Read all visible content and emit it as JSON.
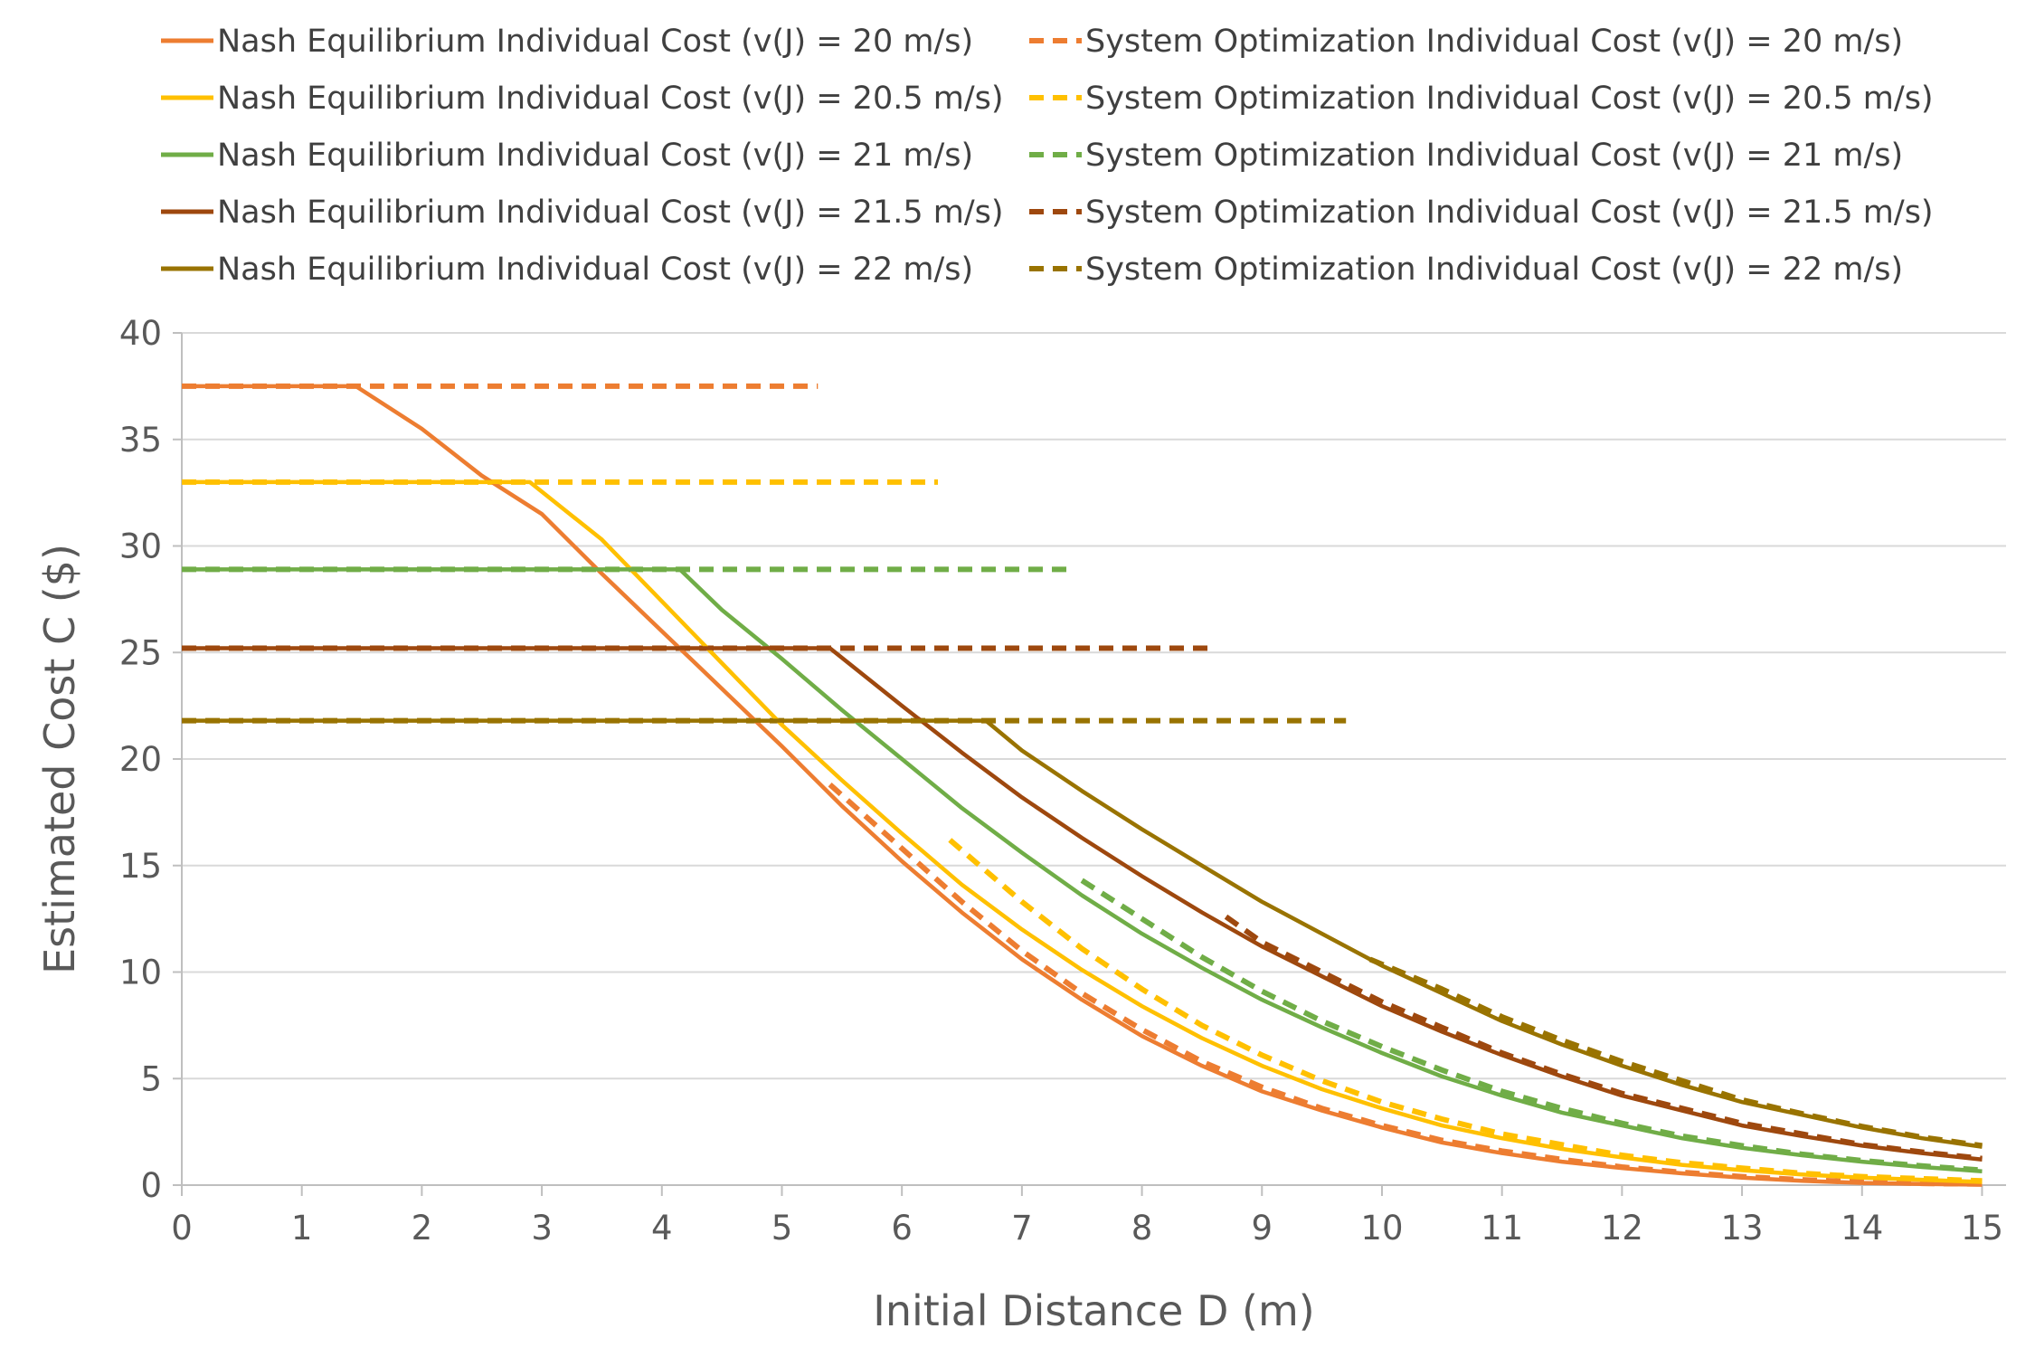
{
  "chart_data": {
    "type": "line",
    "title": "",
    "xlabel": "Initial Distance D (m)",
    "ylabel": "Estimated Cost C ($)",
    "xlim": [
      0,
      15.2
    ],
    "ylim": [
      0,
      40
    ],
    "x_ticks": [
      "0",
      "1",
      "2",
      "3",
      "4",
      "5",
      "6",
      "7",
      "8",
      "9",
      "10",
      "11",
      "12",
      "13",
      "14",
      "15"
    ],
    "y_ticks": [
      "0",
      "5",
      "10",
      "15",
      "20",
      "25",
      "30",
      "35",
      "40"
    ],
    "grid": "horizontal",
    "legend_position": "top",
    "series": [
      {
        "name": "Nash Equilibrium Individual Cost (v(J) = 20 m/s)",
        "color": "#ED7D31",
        "dash": "solid",
        "points": [
          [
            0,
            37.5
          ],
          [
            1.45,
            37.5
          ],
          [
            2,
            35.5
          ],
          [
            2.5,
            33.3
          ],
          [
            3,
            31.5
          ],
          [
            3.5,
            28.7
          ],
          [
            4,
            26
          ],
          [
            4.5,
            23.3
          ],
          [
            5,
            20.6
          ],
          [
            5.5,
            17.8
          ],
          [
            6,
            15.2
          ],
          [
            6.5,
            12.8
          ],
          [
            7,
            10.6
          ],
          [
            7.5,
            8.7
          ],
          [
            8,
            7
          ],
          [
            8.5,
            5.6
          ],
          [
            9,
            4.4
          ],
          [
            9.5,
            3.5
          ],
          [
            10,
            2.7
          ],
          [
            10.5,
            2
          ],
          [
            11,
            1.5
          ],
          [
            11.5,
            1.1
          ],
          [
            12,
            0.8
          ],
          [
            12.5,
            0.55
          ],
          [
            13,
            0.35
          ],
          [
            13.5,
            0.2
          ],
          [
            14,
            0.1
          ],
          [
            14.5,
            0.05
          ],
          [
            15,
            0.02
          ]
        ]
      },
      {
        "name": "System Optimization Individual Cost (v(J) = 20 m/s)",
        "color": "#ED7D31",
        "dash": "dashed",
        "points": [
          [
            0,
            37.5
          ],
          [
            5.3,
            37.5
          ]
        ],
        "points_lower": [
          [
            5.4,
            18.8
          ],
          [
            6,
            15.8
          ],
          [
            6.5,
            13.3
          ],
          [
            7,
            11
          ],
          [
            7.5,
            9
          ],
          [
            8,
            7.3
          ],
          [
            8.5,
            5.8
          ],
          [
            9,
            4.6
          ],
          [
            9.5,
            3.6
          ],
          [
            10,
            2.8
          ],
          [
            10.5,
            2.1
          ],
          [
            11,
            1.6
          ],
          [
            11.5,
            1.2
          ],
          [
            12,
            0.85
          ],
          [
            12.5,
            0.6
          ],
          [
            13,
            0.4
          ],
          [
            13.5,
            0.25
          ],
          [
            14,
            0.15
          ],
          [
            14.5,
            0.08
          ],
          [
            15,
            0.05
          ]
        ]
      },
      {
        "name": "Nash Equilibrium Individual Cost (v(J) = 20.5 m/s)",
        "color": "#FFC000",
        "dash": "solid",
        "points": [
          [
            0,
            33
          ],
          [
            2.9,
            33
          ],
          [
            3.5,
            30.3
          ],
          [
            4,
            27.4
          ],
          [
            4.5,
            24.5
          ],
          [
            5,
            21.6
          ],
          [
            5.5,
            19
          ],
          [
            6,
            16.5
          ],
          [
            6.5,
            14.1
          ],
          [
            7,
            12
          ],
          [
            7.5,
            10.1
          ],
          [
            8,
            8.4
          ],
          [
            8.5,
            6.9
          ],
          [
            9,
            5.6
          ],
          [
            9.5,
            4.5
          ],
          [
            10,
            3.6
          ],
          [
            10.5,
            2.8
          ],
          [
            11,
            2.2
          ],
          [
            11.5,
            1.7
          ],
          [
            12,
            1.3
          ],
          [
            12.5,
            0.95
          ],
          [
            13,
            0.7
          ],
          [
            13.5,
            0.5
          ],
          [
            14,
            0.35
          ],
          [
            14.5,
            0.25
          ],
          [
            15,
            0.15
          ]
        ]
      },
      {
        "name": "System Optimization Individual Cost (v(J) = 20.5 m/s)",
        "color": "#FFC000",
        "dash": "dashed",
        "points": [
          [
            0,
            33
          ],
          [
            6.3,
            33
          ]
        ],
        "points_lower": [
          [
            6.4,
            16.2
          ],
          [
            7,
            13.3
          ],
          [
            7.5,
            11.1
          ],
          [
            8,
            9.2
          ],
          [
            8.5,
            7.5
          ],
          [
            9,
            6.1
          ],
          [
            9.5,
            4.9
          ],
          [
            10,
            3.9
          ],
          [
            10.5,
            3.1
          ],
          [
            11,
            2.4
          ],
          [
            11.5,
            1.9
          ],
          [
            12,
            1.4
          ],
          [
            12.5,
            1.05
          ],
          [
            13,
            0.8
          ],
          [
            13.5,
            0.55
          ],
          [
            14,
            0.4
          ],
          [
            14.5,
            0.3
          ],
          [
            15,
            0.2
          ]
        ]
      },
      {
        "name": "Nash Equilibrium Individual Cost (v(J) = 21 m/s)",
        "color": "#70AD47",
        "dash": "solid",
        "points": [
          [
            0,
            28.9
          ],
          [
            4.15,
            28.9
          ],
          [
            4.5,
            27
          ],
          [
            5,
            24.7
          ],
          [
            5.5,
            22.3
          ],
          [
            6,
            20
          ],
          [
            6.5,
            17.7
          ],
          [
            7,
            15.6
          ],
          [
            7.5,
            13.6
          ],
          [
            8,
            11.8
          ],
          [
            8.5,
            10.2
          ],
          [
            9,
            8.7
          ],
          [
            9.5,
            7.4
          ],
          [
            10,
            6.2
          ],
          [
            10.5,
            5.1
          ],
          [
            11,
            4.2
          ],
          [
            11.5,
            3.4
          ],
          [
            12,
            2.8
          ],
          [
            12.5,
            2.2
          ],
          [
            13,
            1.75
          ],
          [
            13.5,
            1.4
          ],
          [
            14,
            1.1
          ],
          [
            14.5,
            0.85
          ],
          [
            15,
            0.65
          ]
        ]
      },
      {
        "name": "System Optimization Individual Cost (v(J) = 21 m/s)",
        "color": "#70AD47",
        "dash": "dashed",
        "points": [
          [
            0,
            28.9
          ],
          [
            7.4,
            28.9
          ]
        ],
        "points_lower": [
          [
            7.5,
            14.3
          ],
          [
            8,
            12.5
          ],
          [
            8.5,
            10.7
          ],
          [
            9,
            9.1
          ],
          [
            9.5,
            7.7
          ],
          [
            10,
            6.5
          ],
          [
            10.5,
            5.4
          ],
          [
            11,
            4.4
          ],
          [
            11.5,
            3.6
          ],
          [
            12,
            2.9
          ],
          [
            12.5,
            2.3
          ],
          [
            13,
            1.85
          ],
          [
            13.5,
            1.45
          ],
          [
            14,
            1.15
          ],
          [
            14.5,
            0.9
          ],
          [
            15,
            0.7
          ]
        ]
      },
      {
        "name": "Nash Equilibrium Individual Cost (v(J) = 21.5 m/s)",
        "color": "#9E480E",
        "dash": "solid",
        "points": [
          [
            0,
            25.2
          ],
          [
            5.4,
            25.2
          ],
          [
            6,
            22.5
          ],
          [
            6.5,
            20.3
          ],
          [
            7,
            18.2
          ],
          [
            7.5,
            16.3
          ],
          [
            8,
            14.5
          ],
          [
            8.5,
            12.8
          ],
          [
            9,
            11.2
          ],
          [
            9.5,
            9.8
          ],
          [
            10,
            8.4
          ],
          [
            10.5,
            7.2
          ],
          [
            11,
            6.1
          ],
          [
            11.5,
            5.1
          ],
          [
            12,
            4.2
          ],
          [
            12.5,
            3.5
          ],
          [
            13,
            2.8
          ],
          [
            13.5,
            2.3
          ],
          [
            14,
            1.85
          ],
          [
            14.5,
            1.5
          ],
          [
            15,
            1.2
          ]
        ]
      },
      {
        "name": "System Optimization Individual Cost (v(J) = 21.5 m/s)",
        "color": "#9E480E",
        "dash": "dashed",
        "points": [
          [
            0,
            25.2
          ],
          [
            8.6,
            25.2
          ]
        ],
        "points_lower": [
          [
            8.7,
            12.6
          ],
          [
            9,
            11.4
          ],
          [
            9.5,
            10
          ],
          [
            10,
            8.6
          ],
          [
            10.5,
            7.4
          ],
          [
            11,
            6.2
          ],
          [
            11.5,
            5.2
          ],
          [
            12,
            4.3
          ],
          [
            12.5,
            3.6
          ],
          [
            13,
            2.9
          ],
          [
            13.5,
            2.4
          ],
          [
            14,
            1.9
          ],
          [
            14.5,
            1.55
          ],
          [
            15,
            1.25
          ]
        ]
      },
      {
        "name": "Nash Equilibrium Individual Cost (v(J) = 22 m/s)",
        "color": "#997300",
        "dash": "solid",
        "points": [
          [
            0,
            21.8
          ],
          [
            6.7,
            21.8
          ],
          [
            7,
            20.4
          ],
          [
            7.5,
            18.5
          ],
          [
            8,
            16.7
          ],
          [
            8.5,
            15
          ],
          [
            9,
            13.3
          ],
          [
            9.5,
            11.8
          ],
          [
            10,
            10.3
          ],
          [
            10.5,
            9
          ],
          [
            11,
            7.7
          ],
          [
            11.5,
            6.6
          ],
          [
            12,
            5.6
          ],
          [
            12.5,
            4.7
          ],
          [
            13,
            3.9
          ],
          [
            13.5,
            3.3
          ],
          [
            14,
            2.7
          ],
          [
            14.5,
            2.2
          ],
          [
            15,
            1.8
          ]
        ]
      },
      {
        "name": "System Optimization Individual Cost (v(J) = 22 m/s)",
        "color": "#997300",
        "dash": "dashed",
        "points": [
          [
            0,
            21.8
          ],
          [
            9.7,
            21.8
          ]
        ],
        "points_lower": [
          [
            9.9,
            10.6
          ],
          [
            10.5,
            9.2
          ],
          [
            11,
            7.9
          ],
          [
            11.5,
            6.8
          ],
          [
            12,
            5.8
          ],
          [
            12.5,
            4.9
          ],
          [
            13,
            4
          ],
          [
            13.5,
            3.35
          ],
          [
            14,
            2.75
          ],
          [
            14.5,
            2.25
          ],
          [
            15,
            1.85
          ]
        ]
      }
    ]
  }
}
